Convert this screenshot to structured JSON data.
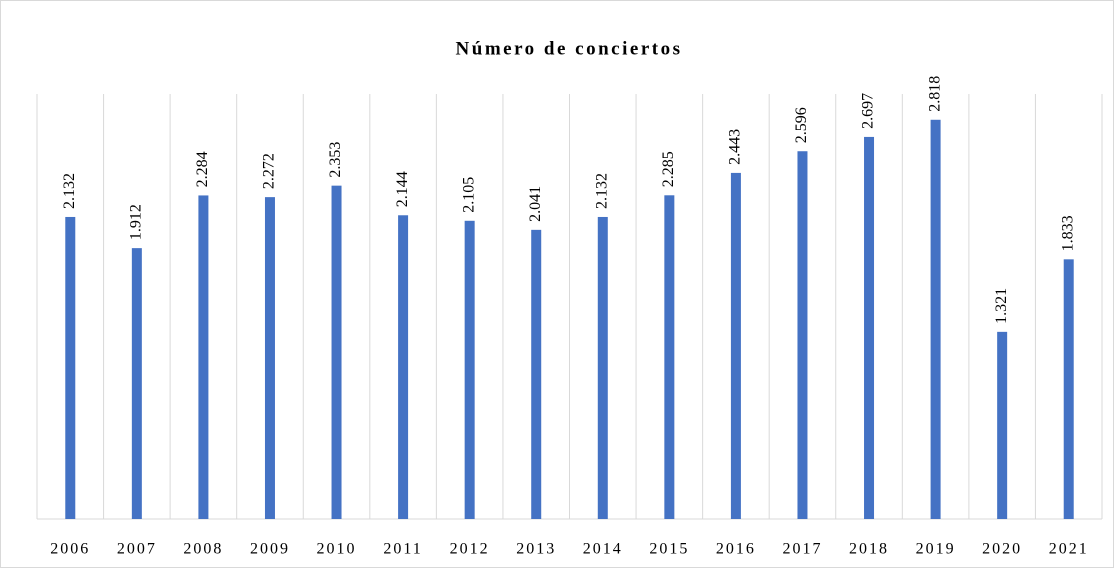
{
  "chart_data": {
    "type": "bar",
    "title": "Número de conciertos",
    "categories": [
      "2006",
      "2007",
      "2008",
      "2009",
      "2010",
      "2011",
      "2012",
      "2013",
      "2014",
      "2015",
      "2016",
      "2017",
      "2018",
      "2019",
      "2020",
      "2021"
    ],
    "values": [
      2132,
      1912,
      2284,
      2272,
      2353,
      2144,
      2105,
      2041,
      2132,
      2285,
      2443,
      2596,
      2697,
      2818,
      1321,
      1833
    ],
    "value_labels": [
      "2.132",
      "1.912",
      "2.284",
      "2.272",
      "2.353",
      "2.144",
      "2.105",
      "2.041",
      "2.132",
      "2.285",
      "2.443",
      "2.596",
      "2.697",
      "2.818",
      "1.321",
      "1.833"
    ],
    "color": "#4472c4",
    "ylim": [
      0,
      3000
    ],
    "grid": true
  }
}
